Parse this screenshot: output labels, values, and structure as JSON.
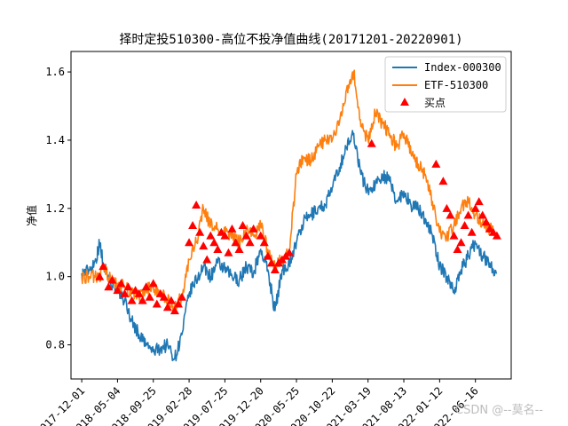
{
  "chart_data": {
    "type": "line",
    "title": "择时定投510300-高位不投净值曲线(20171201-20220901)",
    "xlabel": "",
    "ylabel": "净值",
    "ylim": [
      0.7,
      1.66
    ],
    "xlim": [
      -0.3,
      12.0
    ],
    "yticks": [
      0.8,
      1.0,
      1.2,
      1.4,
      1.6
    ],
    "ytick_labels": [
      "0.8",
      "1.0",
      "1.2",
      "1.4",
      "1.6"
    ],
    "x_tick_positions": [
      0,
      1,
      2,
      3,
      4,
      5,
      6,
      7,
      8,
      9,
      10,
      11
    ],
    "x_tick_labels": [
      "2017-12-01",
      "2018-05-04",
      "2018-09-25",
      "2019-02-28",
      "2019-07-25",
      "2019-12-20",
      "2020-05-25",
      "2020-10-22",
      "2021-03-19",
      "2021-08-13",
      "2022-01-12",
      "2022-06-16"
    ],
    "legend_position": "top-right",
    "series": [
      {
        "name": "Index-000300",
        "color": "#1f77b4",
        "x": [
          0,
          0.2,
          0.4,
          0.5,
          0.6,
          0.8,
          1.0,
          1.2,
          1.4,
          1.6,
          1.8,
          2.0,
          2.2,
          2.4,
          2.6,
          2.8,
          3.0,
          3.2,
          3.4,
          3.6,
          3.8,
          4.0,
          4.2,
          4.4,
          4.6,
          4.8,
          5.0,
          5.2,
          5.4,
          5.6,
          5.8,
          6.0,
          6.2,
          6.4,
          6.6,
          6.8,
          7.0,
          7.2,
          7.4,
          7.6,
          7.8,
          8.0,
          8.2,
          8.4,
          8.6,
          8.8,
          9.0,
          9.2,
          9.4,
          9.6,
          9.8,
          10.0,
          10.2,
          10.4,
          10.6,
          10.8,
          11.0,
          11.2,
          11.4,
          11.6
        ],
        "values": [
          1.01,
          1.02,
          1.05,
          1.1,
          1.04,
          0.99,
          0.96,
          0.93,
          0.87,
          0.83,
          0.8,
          0.78,
          0.79,
          0.8,
          0.76,
          0.83,
          0.95,
          0.99,
          1.03,
          1.0,
          1.04,
          1.02,
          1.0,
          0.99,
          1.03,
          1.01,
          1.08,
          1.02,
          0.9,
          1.02,
          1.04,
          1.1,
          1.16,
          1.18,
          1.2,
          1.21,
          1.26,
          1.32,
          1.38,
          1.42,
          1.3,
          1.25,
          1.27,
          1.3,
          1.28,
          1.22,
          1.25,
          1.21,
          1.2,
          1.17,
          1.12,
          1.03,
          1.0,
          0.96,
          1.02,
          1.06,
          1.1,
          1.06,
          1.04,
          1.01
        ]
      },
      {
        "name": "ETF-510300",
        "color": "#ff7f0e",
        "x": [
          0,
          0.2,
          0.4,
          0.5,
          0.6,
          0.8,
          1.0,
          1.2,
          1.4,
          1.6,
          1.8,
          2.0,
          2.2,
          2.4,
          2.6,
          2.8,
          3.0,
          3.2,
          3.4,
          3.6,
          3.8,
          4.0,
          4.2,
          4.4,
          4.6,
          4.8,
          5.0,
          5.2,
          5.4,
          5.6,
          5.8,
          6.0,
          6.2,
          6.4,
          6.6,
          6.8,
          7.0,
          7.2,
          7.4,
          7.6,
          7.8,
          8.0,
          8.2,
          8.4,
          8.6,
          8.8,
          9.0,
          9.2,
          9.4,
          9.6,
          9.8,
          10.0,
          10.2,
          10.4,
          10.6,
          10.8,
          11.0,
          11.2,
          11.4,
          11.6
        ],
        "values": [
          1.0,
          1.0,
          1.0,
          1.0,
          1.03,
          0.99,
          0.98,
          0.97,
          0.95,
          0.94,
          0.96,
          0.97,
          0.95,
          0.93,
          0.91,
          0.94,
          1.05,
          1.1,
          1.2,
          1.15,
          1.14,
          1.13,
          1.12,
          1.1,
          1.14,
          1.12,
          1.15,
          1.08,
          1.03,
          1.05,
          1.08,
          1.3,
          1.35,
          1.34,
          1.38,
          1.4,
          1.4,
          1.45,
          1.55,
          1.6,
          1.44,
          1.4,
          1.48,
          1.45,
          1.42,
          1.38,
          1.42,
          1.36,
          1.33,
          1.3,
          1.22,
          1.13,
          1.12,
          1.15,
          1.2,
          1.22,
          1.18,
          1.16,
          1.14,
          1.12
        ]
      }
    ],
    "buy_points": {
      "name": "买点",
      "color": "#ff0000",
      "x": [
        0.5,
        0.6,
        0.75,
        0.85,
        1.0,
        1.1,
        1.2,
        1.3,
        1.4,
        1.5,
        1.6,
        1.7,
        1.8,
        1.9,
        2.0,
        2.1,
        2.2,
        2.3,
        2.4,
        2.5,
        2.6,
        2.7,
        2.8,
        3.0,
        3.1,
        3.2,
        3.3,
        3.4,
        3.5,
        3.6,
        3.7,
        3.8,
        3.9,
        4.0,
        4.1,
        4.2,
        4.3,
        4.4,
        4.5,
        4.6,
        4.7,
        4.8,
        5.0,
        5.1,
        5.2,
        5.3,
        5.4,
        5.5,
        5.6,
        5.7,
        5.8,
        8.1,
        9.9,
        10.1,
        10.2,
        10.3,
        10.4,
        10.5,
        10.6,
        10.7,
        10.8,
        10.9,
        11.0,
        11.1,
        11.2,
        11.3,
        11.4,
        11.5,
        11.6
      ],
      "values": [
        1.0,
        1.03,
        0.97,
        0.99,
        0.96,
        0.98,
        0.95,
        0.97,
        0.93,
        0.96,
        0.95,
        0.93,
        0.97,
        0.94,
        0.98,
        0.92,
        0.95,
        0.94,
        0.91,
        0.93,
        0.9,
        0.92,
        0.94,
        1.1,
        1.15,
        1.21,
        1.13,
        1.09,
        1.05,
        1.12,
        1.1,
        1.08,
        1.13,
        1.12,
        1.07,
        1.14,
        1.1,
        1.08,
        1.15,
        1.12,
        1.1,
        1.14,
        1.12,
        1.1,
        1.06,
        1.04,
        1.02,
        1.04,
        1.05,
        1.06,
        1.07,
        1.39,
        1.33,
        1.28,
        1.2,
        1.18,
        1.12,
        1.08,
        1.1,
        1.15,
        1.18,
        1.13,
        1.2,
        1.22,
        1.18,
        1.16,
        1.14,
        1.13,
        1.12
      ]
    }
  },
  "watermark": "CSDN @--莫名--"
}
